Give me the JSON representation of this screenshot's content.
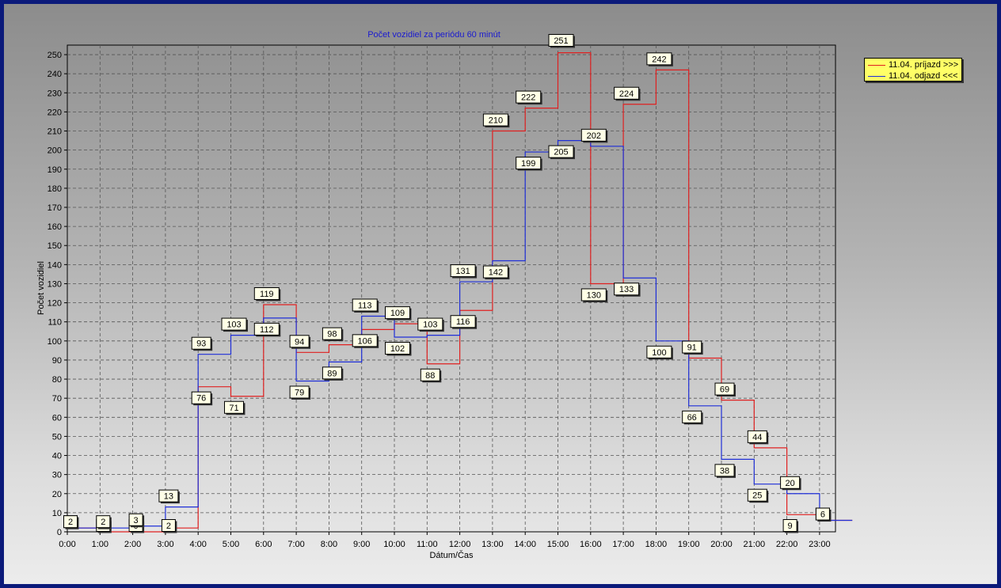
{
  "chart_data": {
    "type": "line",
    "step": true,
    "title": "Počet vozidiel za periódu 60 minút",
    "xlabel": "Dátum/Čas",
    "ylabel": "Počet vozidiel",
    "ylim": [
      0,
      255
    ],
    "yticks": [
      0,
      10,
      20,
      30,
      40,
      50,
      60,
      70,
      80,
      90,
      100,
      110,
      120,
      130,
      140,
      150,
      160,
      170,
      180,
      190,
      200,
      210,
      220,
      230,
      240,
      250
    ],
    "categories": [
      "0:00",
      "1:00",
      "2:00",
      "3:00",
      "4:00",
      "5:00",
      "6:00",
      "7:00",
      "8:00",
      "9:00",
      "10:00",
      "11:00",
      "12:00",
      "13:00",
      "14:00",
      "15:00",
      "16:00",
      "17:00",
      "18:00",
      "19:00",
      "20:00",
      "21:00",
      "22:00",
      "23:00"
    ],
    "grid": true,
    "legend_position": "top-right",
    "series": [
      {
        "name": "11.04.  príjazd >>>",
        "color": "#e02020",
        "values": [
          2,
          0,
          0,
          2,
          76,
          71,
          119,
          94,
          98,
          106,
          109,
          88,
          116,
          210,
          222,
          251,
          130,
          224,
          242,
          91,
          69,
          44,
          9,
          6
        ]
      },
      {
        "name": "11.04.  odjazd <<<",
        "color": "#1f2fd8",
        "values": [
          2,
          2,
          3,
          13,
          93,
          103,
          112,
          79,
          89,
          113,
          102,
          103,
          131,
          142,
          199,
          205,
          202,
          133,
          100,
          66,
          38,
          25,
          20,
          6
        ]
      }
    ]
  }
}
